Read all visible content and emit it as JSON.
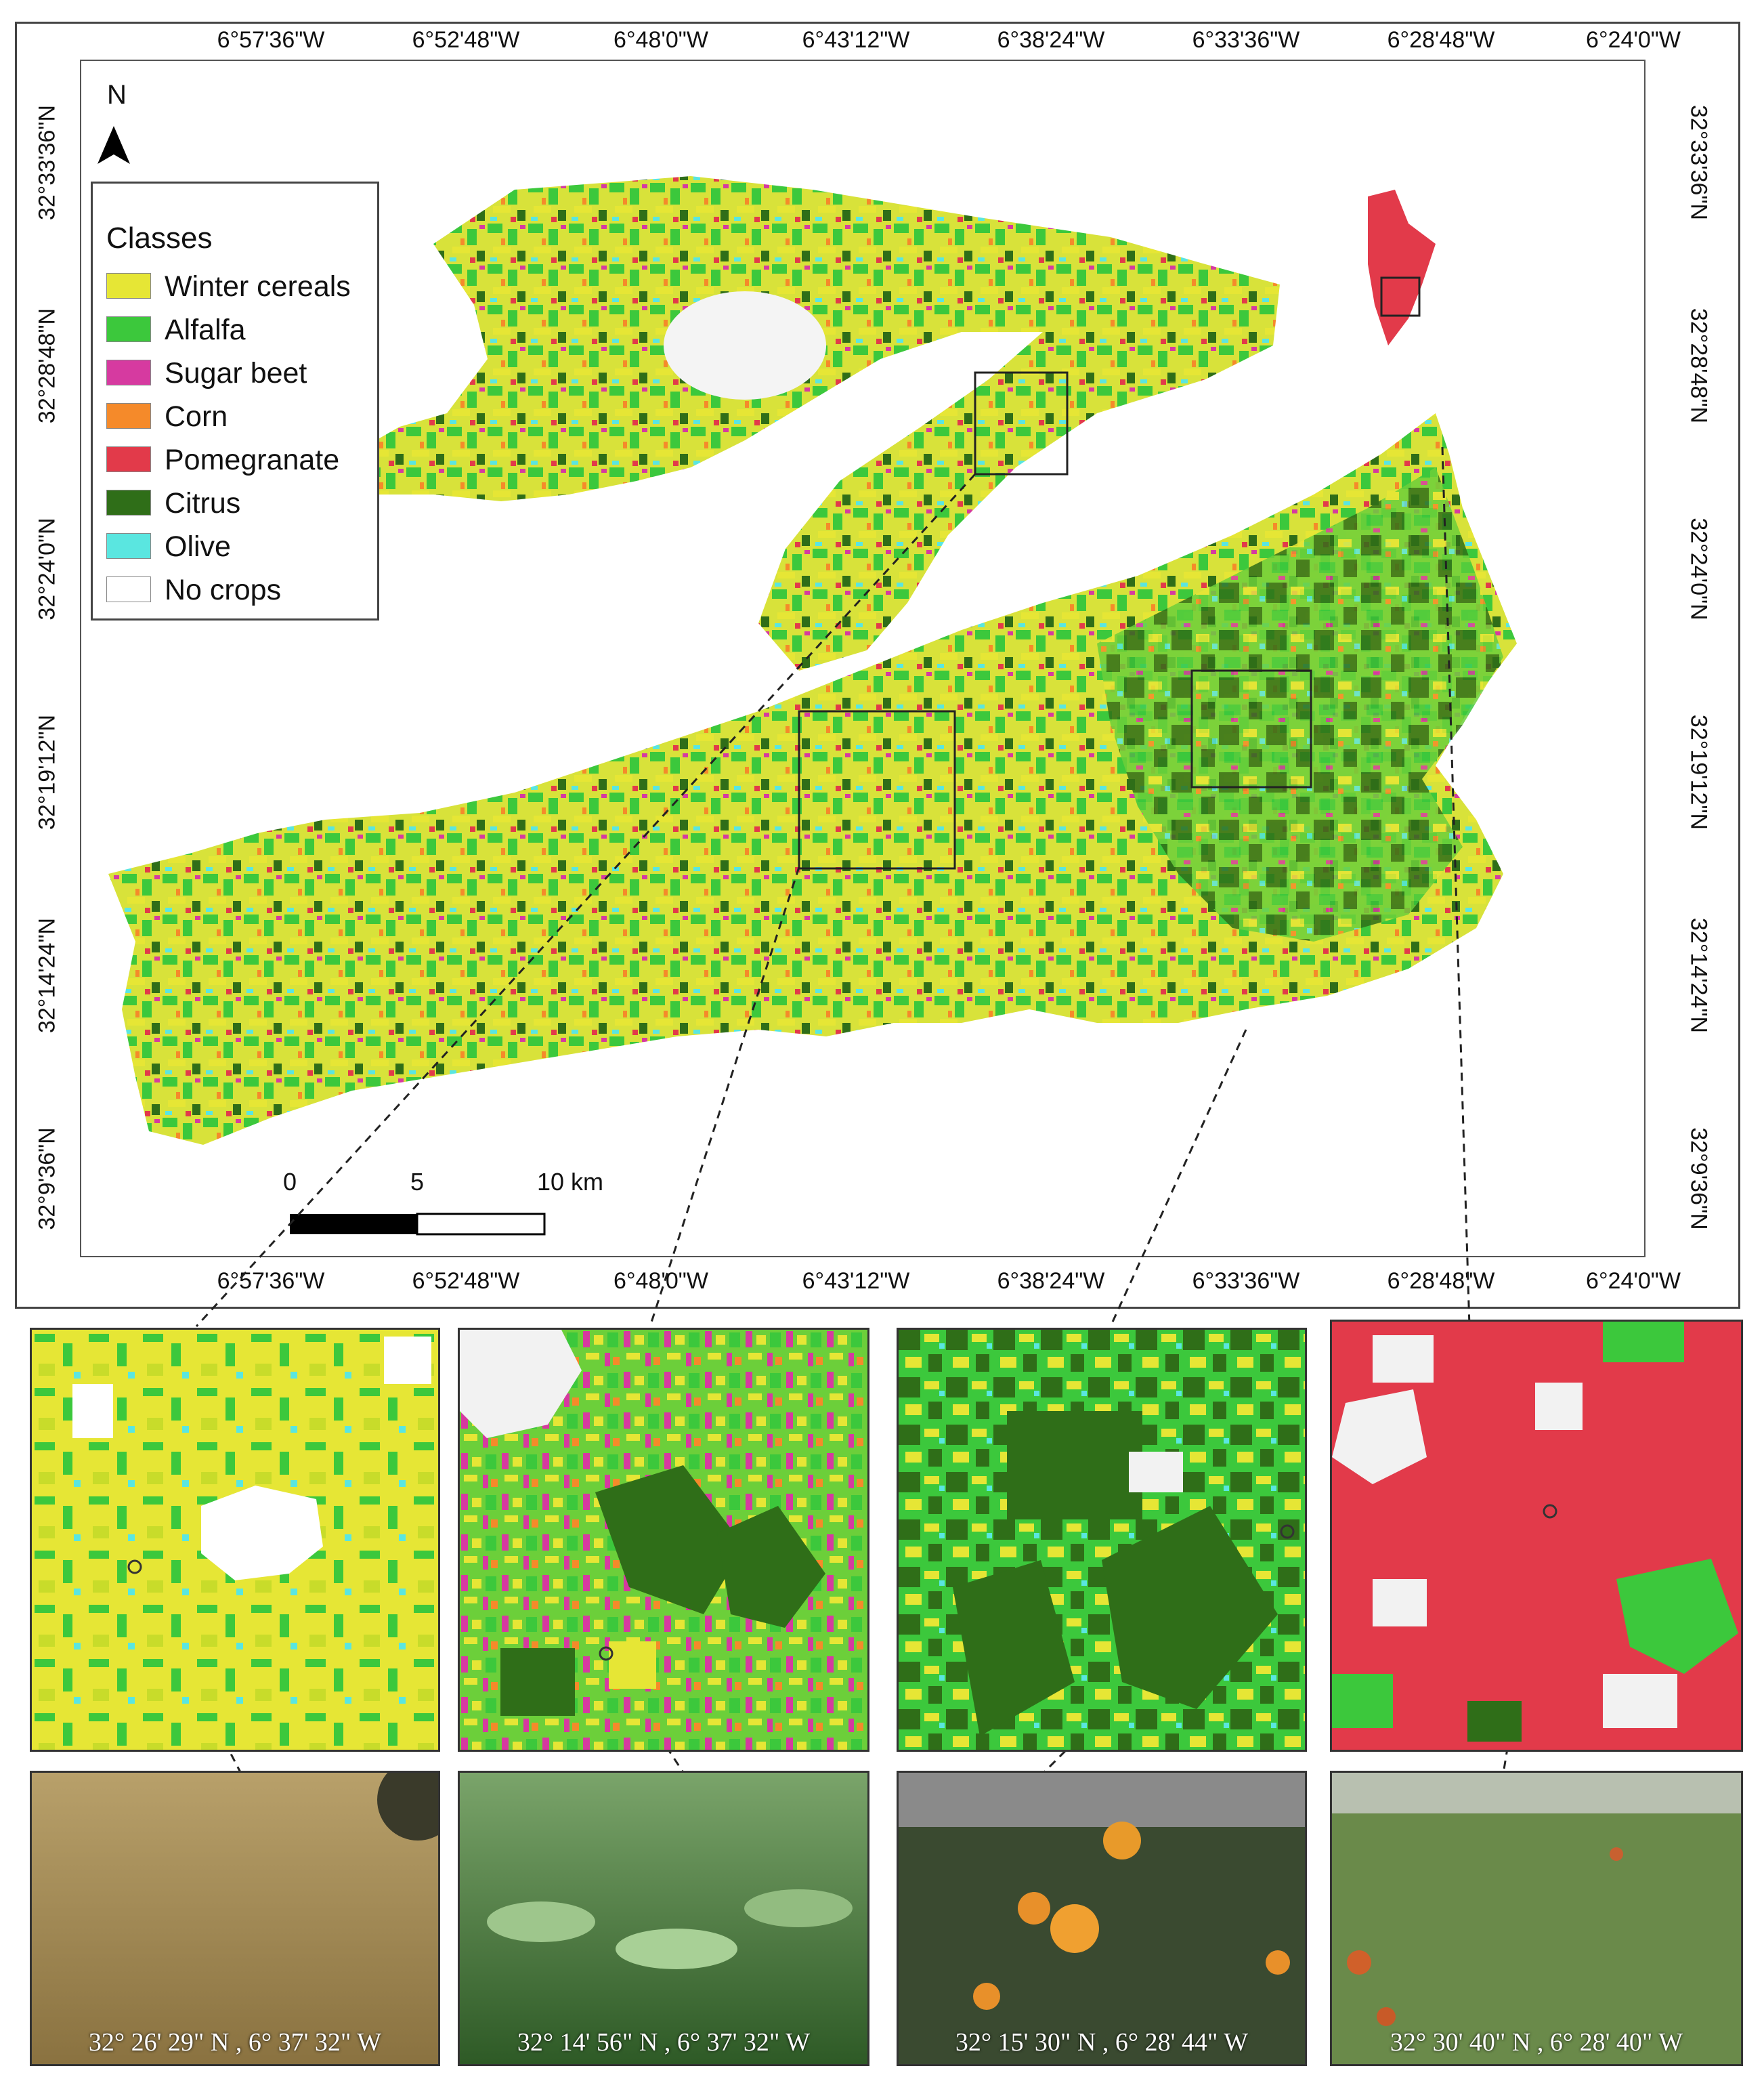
{
  "map": {
    "lon_ticks": [
      "6°57'36\"W",
      "6°52'48\"W",
      "6°48'0\"W",
      "6°43'12\"W",
      "6°38'24\"W",
      "6°33'36\"W",
      "6°28'48\"W",
      "6°24'0\"W"
    ],
    "lat_ticks": [
      "32°33'36\"N",
      "32°28'48\"N",
      "32°24'0\"N",
      "32°19'12\"N",
      "32°14'24\"N",
      "32°9'36\"N"
    ],
    "north_label": "N"
  },
  "legend": {
    "title": "Classes",
    "items": [
      {
        "label": "Winter cereals",
        "color": "#e6e635"
      },
      {
        "label": "Alfalfa",
        "color": "#3cc83c"
      },
      {
        "label": "Sugar beet",
        "color": "#d63aa0"
      },
      {
        "label": "Corn",
        "color": "#f58a2a"
      },
      {
        "label": "Pomegranate",
        "color": "#e23a4a"
      },
      {
        "label": "Citrus",
        "color": "#2f6e18"
      },
      {
        "label": "Olive",
        "color": "#5ae6e0"
      },
      {
        "label": "No crops",
        "color": "#ffffff"
      }
    ]
  },
  "scalebar": {
    "labels": [
      "0",
      "5",
      "10 km"
    ]
  },
  "photos": [
    {
      "coord": "32° 26' 29\" N , 6° 37' 32\" W",
      "subject": "wheat field"
    },
    {
      "coord": "32° 14' 56\" N , 6° 37' 32\" W",
      "subject": "sugar beet leaves"
    },
    {
      "coord": "32° 15' 30\" N , 6° 28' 44\" W",
      "subject": "citrus tree with oranges"
    },
    {
      "coord": "32° 30' 40\" N , 6° 28' 40\" W",
      "subject": "pomegranate orchard"
    }
  ]
}
